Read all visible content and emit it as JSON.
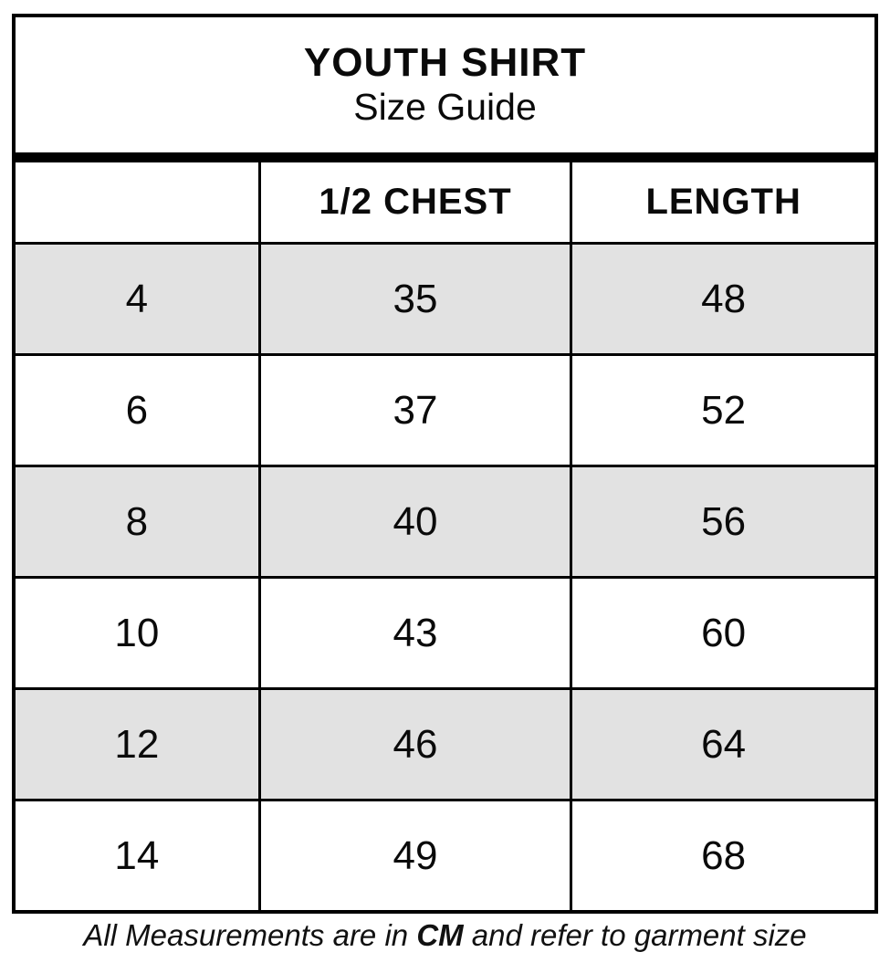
{
  "title": {
    "line1": "YOUTH SHIRT",
    "line2": "Size Guide"
  },
  "table": {
    "columns": [
      "",
      "1/2 CHEST",
      "LENGTH"
    ],
    "rows": [
      {
        "size": "4",
        "half_chest": "35",
        "length": "48"
      },
      {
        "size": "6",
        "half_chest": "37",
        "length": "52"
      },
      {
        "size": "8",
        "half_chest": "40",
        "length": "56"
      },
      {
        "size": "10",
        "half_chest": "43",
        "length": "60"
      },
      {
        "size": "12",
        "half_chest": "46",
        "length": "64"
      },
      {
        "size": "14",
        "half_chest": "49",
        "length": "68"
      }
    ]
  },
  "footer": {
    "prefix": "All Measurements are in ",
    "unit": "CM",
    "suffix": " and refer to garment size"
  },
  "colors": {
    "border": "#000000",
    "row_shade": "#e2e2e2",
    "background": "#ffffff",
    "text": "#0a0a0a"
  },
  "chart_data": {
    "type": "table",
    "title": "YOUTH SHIRT Size Guide",
    "columns": [
      "",
      "1/2 CHEST",
      "LENGTH"
    ],
    "rows": [
      [
        4,
        35,
        48
      ],
      [
        6,
        37,
        52
      ],
      [
        8,
        40,
        56
      ],
      [
        10,
        43,
        60
      ],
      [
        12,
        46,
        64
      ],
      [
        14,
        49,
        68
      ]
    ],
    "units": "CM",
    "note": "All Measurements are in CM and refer to garment size",
    "layout_hints": {
      "shaded_row_indexes": [
        0,
        2,
        4
      ],
      "first_column_header_blank": true,
      "thick_divider_below_title": true
    }
  }
}
